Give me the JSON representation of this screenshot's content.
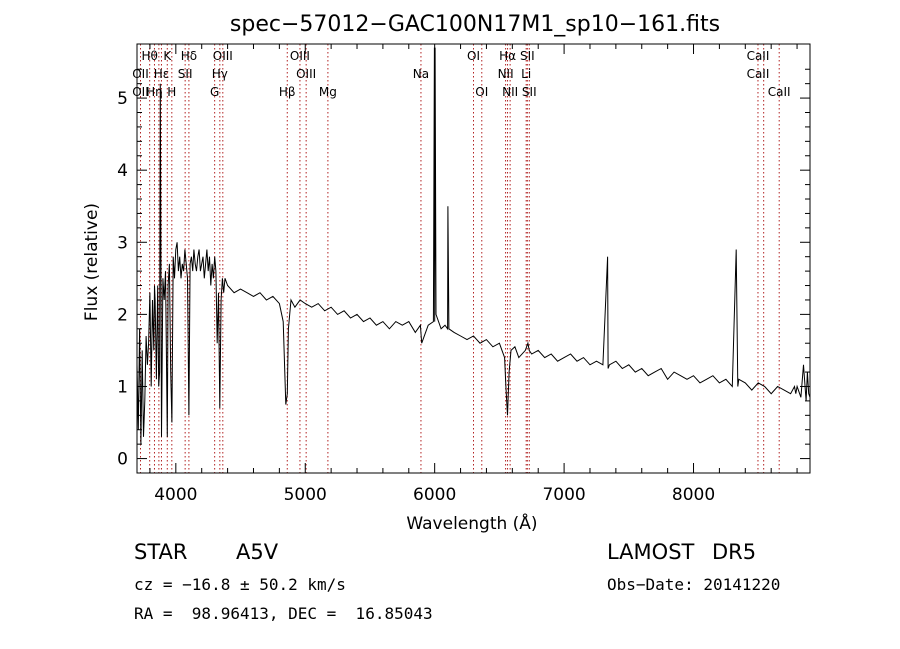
{
  "chart_data": {
    "type": "line",
    "title": "spec−57012−GAC100N17M1_sp10−161.fits",
    "xlabel": "Wavelength (Å)",
    "ylabel": "Flux (relative)",
    "xlim": [
      3700,
      8900
    ],
    "ylim": [
      -0.2,
      5.75
    ],
    "x_ticks": [
      4000,
      5000,
      6000,
      7000,
      8000
    ],
    "y_ticks": [
      0,
      1,
      2,
      3,
      4,
      5
    ],
    "grid": false,
    "series": [
      {
        "color": "#000000",
        "x": [
          3700,
          3710,
          3720,
          3730,
          3740,
          3750,
          3760,
          3770,
          3780,
          3790,
          3800,
          3810,
          3820,
          3830,
          3835,
          3840,
          3850,
          3860,
          3868,
          3875,
          3880,
          3889,
          3900,
          3910,
          3920,
          3934,
          3940,
          3950,
          3960,
          3970,
          3980,
          3990,
          4000,
          4010,
          4020,
          4030,
          4040,
          4050,
          4060,
          4070,
          4080,
          4090,
          4101,
          4110,
          4120,
          4130,
          4140,
          4150,
          4160,
          4170,
          4180,
          4190,
          4200,
          4210,
          4220,
          4230,
          4240,
          4250,
          4260,
          4270,
          4280,
          4290,
          4300,
          4310,
          4320,
          4330,
          4340,
          4350,
          4360,
          4370,
          4380,
          4400,
          4450,
          4500,
          4550,
          4600,
          4650,
          4700,
          4750,
          4800,
          4830,
          4850,
          4861,
          4870,
          4890,
          4920,
          4960,
          5000,
          5050,
          5100,
          5150,
          5200,
          5250,
          5300,
          5350,
          5400,
          5450,
          5500,
          5550,
          5600,
          5650,
          5700,
          5750,
          5800,
          5850,
          5890,
          5900,
          5950,
          5990,
          5998,
          6000,
          6003,
          6010,
          6050,
          6080,
          6100,
          6102,
          6110,
          6150,
          6200,
          6250,
          6300,
          6350,
          6400,
          6450,
          6500,
          6520,
          6540,
          6550,
          6563,
          6575,
          6590,
          6620,
          6650,
          6700,
          6720,
          6730,
          6750,
          6800,
          6850,
          6900,
          6950,
          7000,
          7050,
          7100,
          7150,
          7200,
          7250,
          7300,
          7336,
          7340,
          7350,
          7400,
          7450,
          7500,
          7550,
          7600,
          7650,
          7700,
          7750,
          7800,
          7850,
          7900,
          7950,
          8000,
          8050,
          8100,
          8150,
          8200,
          8250,
          8300,
          8330,
          8342,
          8350,
          8400,
          8450,
          8500,
          8550,
          8600,
          8650,
          8700,
          8750,
          8780,
          8790,
          8800,
          8830,
          8850,
          8870,
          8880,
          8890,
          8900
        ],
        "y": [
          1.3,
          0.4,
          1.8,
          0.2,
          1.5,
          0.3,
          0.8,
          1.7,
          1.3,
          1.6,
          2.3,
          1.0,
          2.2,
          1.5,
          2.4,
          2.2,
          1.1,
          2.4,
          1.0,
          1.2,
          5.2,
          0.3,
          2.5,
          2.2,
          2.6,
          0.3,
          2.4,
          2.7,
          1.2,
          0.5,
          2.8,
          2.5,
          2.9,
          3.0,
          2.6,
          2.8,
          2.5,
          2.7,
          2.6,
          2.9,
          2.7,
          2.5,
          0.6,
          2.7,
          2.8,
          2.6,
          2.9,
          2.7,
          2.6,
          2.8,
          2.9,
          2.6,
          2.7,
          2.8,
          2.5,
          2.7,
          2.9,
          2.6,
          2.8,
          2.4,
          2.7,
          2.5,
          2.8,
          2.6,
          1.6,
          2.3,
          0.7,
          2.2,
          2.5,
          2.3,
          2.5,
          2.4,
          2.3,
          2.35,
          2.3,
          2.25,
          2.3,
          2.2,
          2.25,
          2.15,
          1.9,
          0.75,
          0.9,
          1.8,
          2.2,
          2.1,
          2.2,
          2.15,
          2.1,
          2.15,
          2.05,
          2.1,
          2.0,
          2.05,
          1.95,
          2.0,
          1.9,
          1.95,
          1.85,
          1.9,
          1.8,
          1.9,
          1.85,
          1.9,
          1.75,
          1.85,
          1.6,
          1.85,
          1.9,
          5.7,
          1.9,
          5.7,
          2.0,
          1.8,
          1.85,
          1.8,
          3.5,
          1.8,
          1.75,
          1.7,
          1.65,
          1.7,
          1.6,
          1.65,
          1.55,
          1.6,
          1.5,
          1.4,
          1.0,
          0.6,
          1.2,
          1.5,
          1.55,
          1.4,
          1.5,
          1.6,
          1.5,
          1.45,
          1.5,
          1.4,
          1.45,
          1.35,
          1.4,
          1.45,
          1.35,
          1.4,
          1.3,
          1.35,
          1.3,
          2.8,
          1.25,
          1.3,
          1.35,
          1.25,
          1.3,
          1.2,
          1.25,
          1.15,
          1.2,
          1.25,
          1.1,
          1.2,
          1.15,
          1.1,
          1.15,
          1.05,
          1.1,
          1.15,
          1.05,
          1.1,
          1.0,
          2.9,
          1.0,
          1.1,
          1.05,
          0.95,
          1.05,
          1.0,
          0.9,
          1.0,
          0.95,
          0.9,
          1.0,
          0.9,
          1.0,
          0.85,
          1.3,
          0.8,
          1.2,
          0.9,
          0.85
        ]
      }
    ],
    "lines": [
      {
        "wave": 3727,
        "labels": [
          "",
          "OII",
          "OII"
        ]
      },
      {
        "wave": 3798,
        "labels": [
          "Hθ",
          "",
          ""
        ]
      },
      {
        "wave": 3835,
        "labels": [
          "",
          "",
          "Hη"
        ]
      },
      {
        "wave": 3869,
        "labels": [
          "",
          "",
          ""
        ]
      },
      {
        "wave": 3889,
        "labels": [
          "",
          "Hε",
          ""
        ]
      },
      {
        "wave": 3934,
        "labels": [
          "K",
          "",
          ""
        ]
      },
      {
        "wave": 3969,
        "labels": [
          "",
          "",
          "H"
        ]
      },
      {
        "wave": 4101,
        "labels": [
          "Hδ",
          "",
          ""
        ]
      },
      {
        "wave": 4072,
        "labels": [
          "",
          "SII",
          ""
        ]
      },
      {
        "wave": 4300,
        "labels": [
          "",
          "",
          "G"
        ]
      },
      {
        "wave": 4340,
        "labels": [
          "",
          "Hγ",
          ""
        ]
      },
      {
        "wave": 4363,
        "labels": [
          "OIII",
          "",
          ""
        ]
      },
      {
        "wave": 4861,
        "labels": [
          "",
          "",
          "Hβ"
        ]
      },
      {
        "wave": 4959,
        "labels": [
          "OIII",
          "",
          ""
        ]
      },
      {
        "wave": 5007,
        "labels": [
          "",
          "OIII",
          ""
        ]
      },
      {
        "wave": 5175,
        "labels": [
          "",
          "",
          "Mg"
        ]
      },
      {
        "wave": 5894,
        "labels": [
          "",
          "Na",
          ""
        ]
      },
      {
        "wave": 6300,
        "labels": [
          "OI",
          "",
          ""
        ]
      },
      {
        "wave": 6364,
        "labels": [
          "",
          "",
          "OI"
        ]
      },
      {
        "wave": 6548,
        "labels": [
          "",
          "NII",
          ""
        ]
      },
      {
        "wave": 6563,
        "labels": [
          "Hα",
          "",
          ""
        ]
      },
      {
        "wave": 6583,
        "labels": [
          "",
          "",
          "NII"
        ]
      },
      {
        "wave": 6707,
        "labels": [
          "",
          "Li",
          ""
        ]
      },
      {
        "wave": 6716,
        "labels": [
          "SII",
          "",
          ""
        ]
      },
      {
        "wave": 6731,
        "labels": [
          "",
          "",
          "SII"
        ]
      },
      {
        "wave": 8498,
        "labels": [
          "CaII",
          "CaII",
          ""
        ]
      },
      {
        "wave": 8542,
        "labels": [
          "",
          "",
          ""
        ]
      },
      {
        "wave": 8662,
        "labels": [
          "",
          "",
          "CaII"
        ]
      }
    ]
  },
  "info": {
    "class": "STAR",
    "subclass": "A5V",
    "survey": "LAMOST",
    "release": "DR5",
    "cz": "cz = −16.8 ± 50.2 km/s",
    "obs_date": "Obs−Date: 20141220",
    "radec": "RA =  98.96413, DEC =  16.85043"
  },
  "colors": {
    "spectrum": "#000000",
    "line_marker": "#b22222",
    "background": "#ffffff"
  }
}
